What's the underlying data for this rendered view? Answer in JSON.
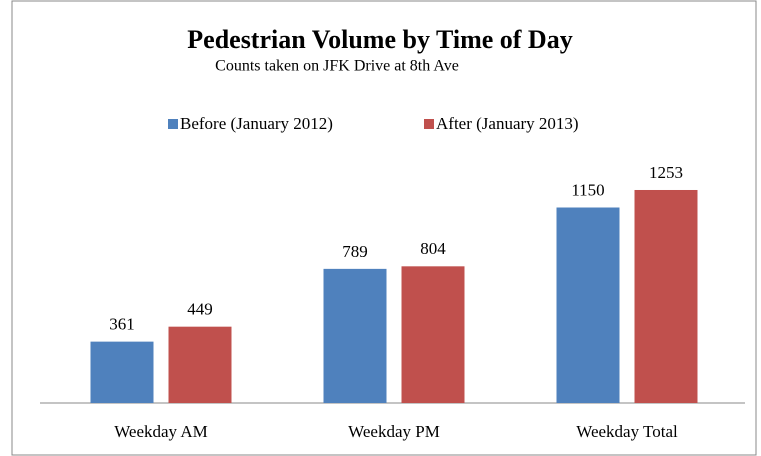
{
  "chart_data": {
    "type": "bar",
    "title": "Pedestrian Volume by Time of Day",
    "subtitle": "Counts taken on JFK Drive at 8th Ave",
    "categories": [
      "Weekday AM",
      "Weekday PM",
      "Weekday Total"
    ],
    "series": [
      {
        "name": "Before (January 2012)",
        "color": "#4f81bd",
        "values": [
          361,
          789,
          1150
        ]
      },
      {
        "name": "After (January 2013)",
        "color": "#c0504d",
        "values": [
          449,
          804,
          1253
        ]
      }
    ],
    "legend": "top"
  }
}
